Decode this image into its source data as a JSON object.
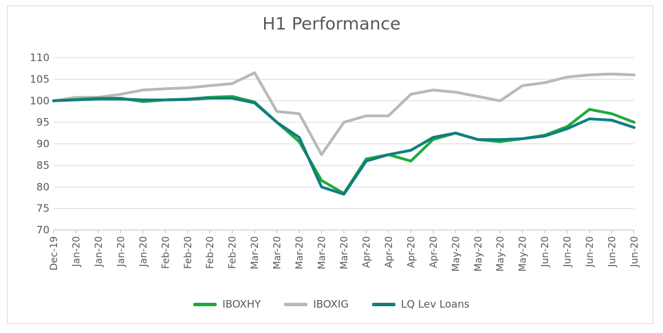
{
  "chart_data": {
    "type": "line",
    "title": "H1 Performance",
    "ylim": [
      70,
      110
    ],
    "yticks": [
      70,
      75,
      80,
      85,
      90,
      95,
      100,
      105,
      110
    ],
    "x_tick_labels": [
      "Dec-19",
      "Jan-20",
      "Jan-20",
      "Jan-20",
      "Jan-20",
      "Feb-20",
      "Feb-20",
      "Feb-20",
      "Feb-20",
      "Mar-20",
      "Mar-20",
      "Mar-20",
      "Mar-20",
      "Mar-20",
      "Apr-20",
      "Apr-20",
      "Apr-20",
      "Apr-20",
      "May-20",
      "May-20",
      "May-20",
      "May-20",
      "Jun-20",
      "Jun-20",
      "Jun-20",
      "Jun-20",
      "Jun-20"
    ],
    "grid": "horizontal",
    "legend_position": "bottom",
    "series": [
      {
        "name": "IBOXHY",
        "color": "#1faa3a",
        "values": [
          100,
          100.3,
          100.6,
          100.6,
          99.8,
          100.2,
          100.4,
          100.8,
          101.0,
          99.7,
          95.0,
          90.5,
          81.5,
          78.5,
          86.5,
          87.5,
          86.0,
          91.0,
          92.5,
          91.0,
          90.5,
          91.2,
          92.0,
          94.0,
          98.0,
          97.0,
          95.0
        ]
      },
      {
        "name": "IBOXIG",
        "color": "#b8b8b8",
        "values": [
          100,
          100.8,
          100.8,
          101.5,
          102.5,
          102.8,
          103.0,
          103.5,
          104.0,
          106.5,
          97.5,
          97.0,
          87.5,
          95.0,
          96.5,
          96.5,
          101.5,
          102.5,
          102.0,
          101.0,
          100.0,
          103.5,
          104.2,
          105.5,
          106.0,
          106.2,
          106.0
        ]
      },
      {
        "name": "LQ Lev Loans",
        "color": "#117d80",
        "values": [
          100,
          100.2,
          100.4,
          100.4,
          100.2,
          100.2,
          100.3,
          100.6,
          100.6,
          99.5,
          95.0,
          91.5,
          80.0,
          78.3,
          86.0,
          87.5,
          88.5,
          91.5,
          92.5,
          91.0,
          91.0,
          91.2,
          91.8,
          93.5,
          95.8,
          95.5,
          93.8
        ]
      }
    ]
  }
}
